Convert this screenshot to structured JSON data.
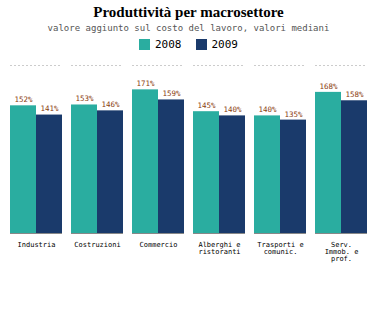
{
  "chart_data": {
    "type": "bar",
    "title": "Produttività per macrosettore",
    "subtitle": "valore aggiunto sul costo del lavoro, valori mediani",
    "categories": [
      "Industria",
      "Costruzioni",
      "Commercio",
      "Alberghi e\nristoranti",
      "Trasporti e\ncomunic.",
      "Serv.\nImmob. e\nprof."
    ],
    "series": [
      {
        "name": "2008",
        "color": "#2aada0",
        "values": [
          152,
          153,
          171,
          145,
          140,
          168
        ],
        "value_labels": [
          "152%",
          "153%",
          "171%",
          "145%",
          "140%",
          "168%"
        ]
      },
      {
        "name": "2009",
        "color": "#1a3a6b",
        "values": [
          141,
          146,
          159,
          140,
          135,
          158
        ],
        "value_labels": [
          "141%",
          "146%",
          "159%",
          "140%",
          "135%",
          "158%"
        ]
      }
    ],
    "ylim": [
      0,
      200
    ],
    "tick_labels": "x",
    "data_labels": true,
    "grid": false,
    "legend": "top"
  }
}
